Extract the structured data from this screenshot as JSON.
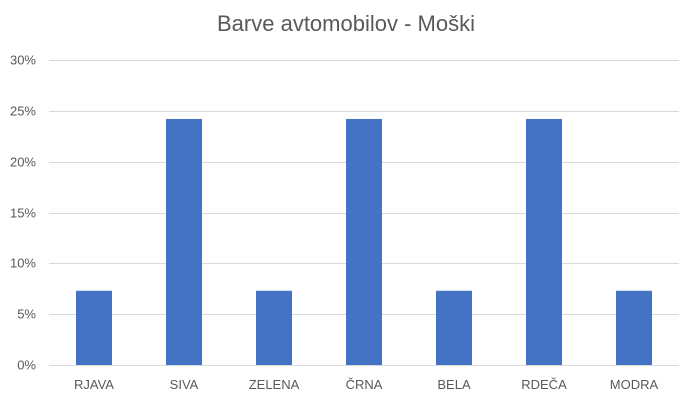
{
  "chart_data": {
    "type": "bar",
    "title": "Barve avtomobilov - Moški",
    "categories": [
      "RJAVA",
      "SIVA",
      "ZELENA",
      "ČRNA",
      "BELA",
      "RDEČA",
      "MODRA"
    ],
    "values": [
      7.3,
      24.2,
      7.3,
      24.2,
      7.3,
      24.2,
      7.3
    ],
    "value_unit": "%",
    "ylim": [
      0,
      30
    ],
    "yticks": [
      "0%",
      "5%",
      "10%",
      "15%",
      "20%",
      "25%",
      "30%"
    ],
    "grid": true,
    "legend": "none",
    "bar_color": "#4472c4",
    "grid_color": "#d9d9d9"
  }
}
